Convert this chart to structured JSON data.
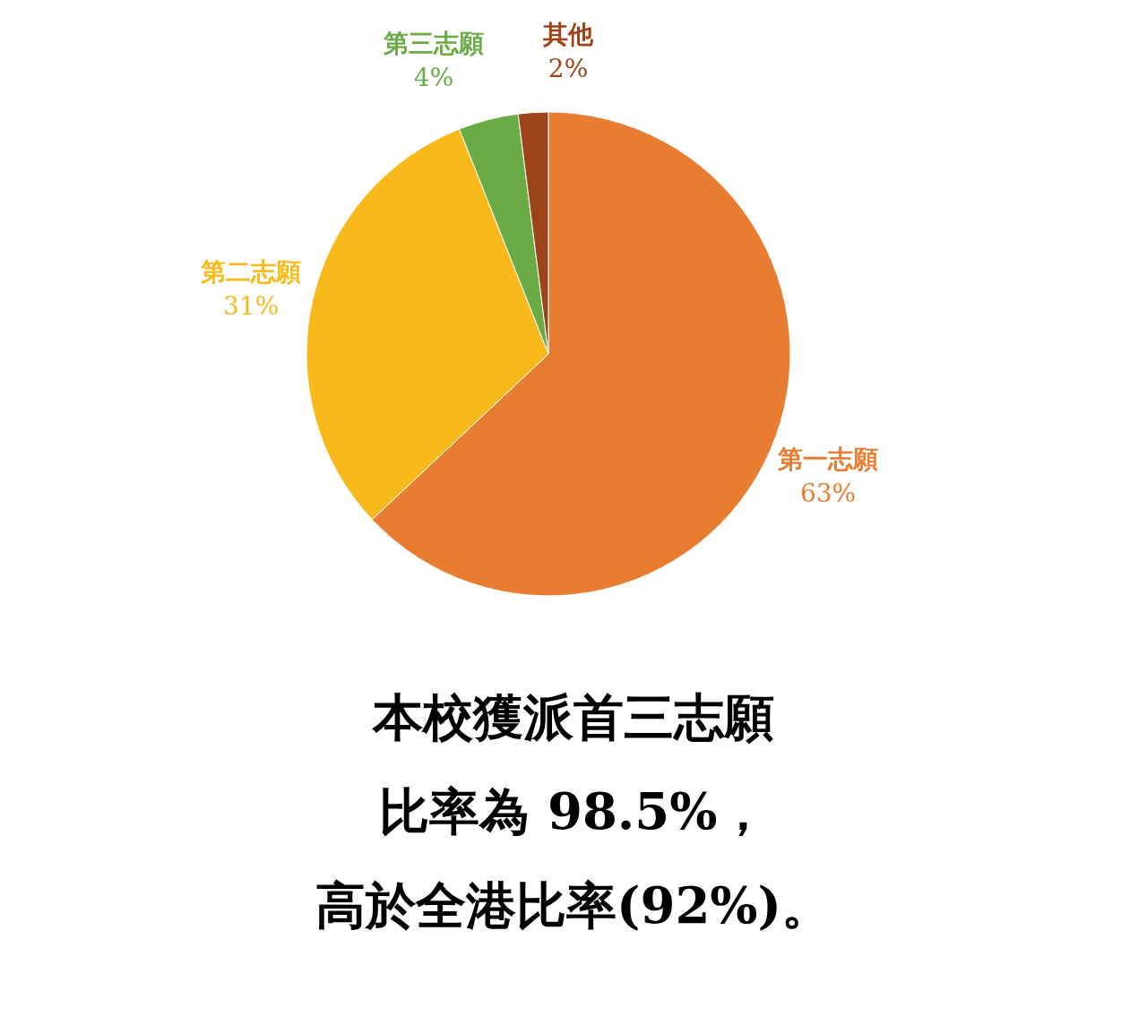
{
  "chart_data": {
    "type": "pie",
    "categories": [
      "第一志願",
      "第二志願",
      "第三志願",
      "其他"
    ],
    "values": [
      63,
      31,
      4,
      2
    ],
    "value_labels": [
      "63%",
      "31%",
      "4%",
      "2%"
    ],
    "colors": [
      "#e87c30",
      "#f8b91b",
      "#6aab45",
      "#9c4318"
    ],
    "annotations": [
      "本校獲派首三志願",
      "比率為 98.5%，",
      "高於全港比率(92%)。"
    ]
  }
}
